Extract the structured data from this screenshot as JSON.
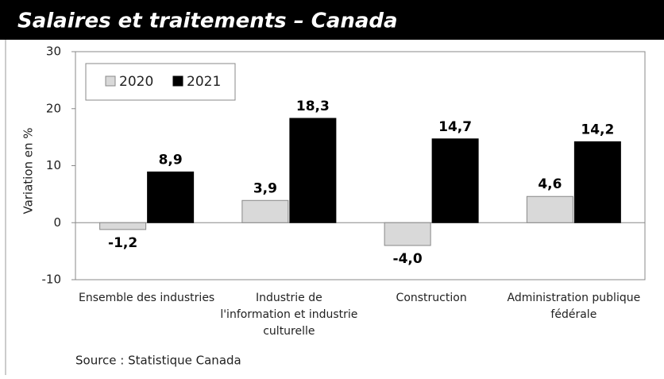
{
  "chart_data": {
    "type": "bar",
    "title": "Salaires et traitements – Canada",
    "categories": [
      "Ensemble des industries",
      "Industrie de l'information et industrie culturelle",
      "Construction",
      "Administration publique fédérale"
    ],
    "series": [
      {
        "name": "2020",
        "color": "#d9d9d9",
        "values": [
          -1.2,
          3.9,
          -4.0,
          4.6
        ],
        "value_labels": [
          "-1,2",
          "3,9",
          "-4,0",
          "4,6"
        ]
      },
      {
        "name": "2021",
        "color": "#000000",
        "values": [
          8.9,
          18.3,
          14.7,
          14.2
        ],
        "value_labels": [
          "8,9",
          "18,3",
          "14,7",
          "14,2"
        ]
      }
    ],
    "ylabel": "Variation en %",
    "ylim": [
      -10,
      30
    ],
    "yticks": [
      -10,
      0,
      10,
      20,
      30
    ],
    "legend": "top-left",
    "source": "Source : Statistique Canada"
  }
}
